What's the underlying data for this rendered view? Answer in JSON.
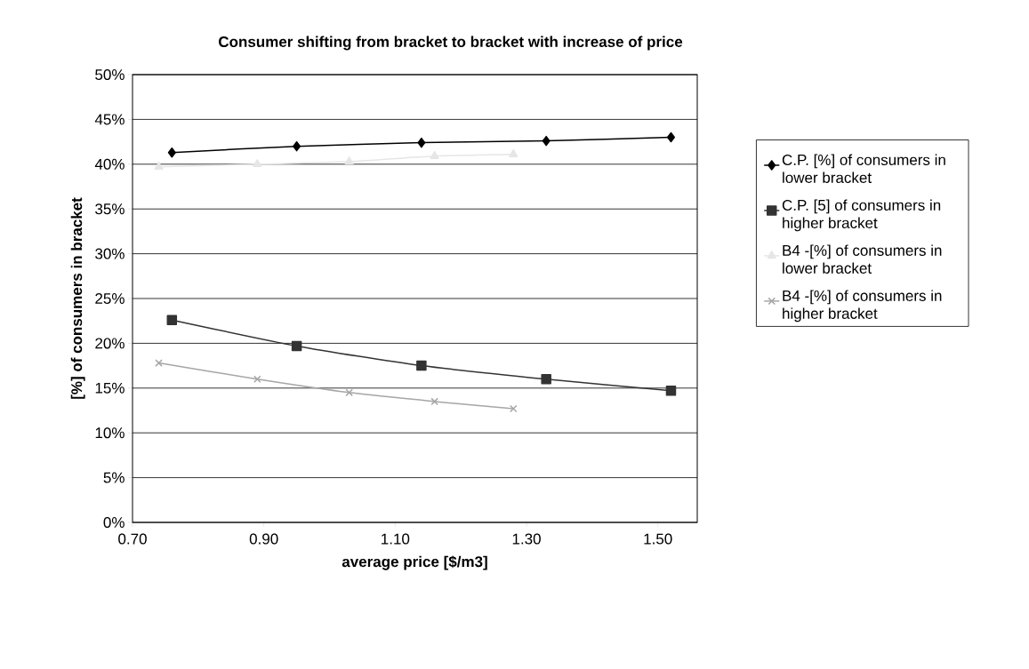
{
  "chart_data": {
    "type": "line",
    "title": "Consumer shifting from bracket to bracket with increase of price",
    "xlabel": "average price [$/m3]",
    "ylabel": "[%] of consumers in bracket",
    "xlim": [
      0.7,
      1.56
    ],
    "xticks": [
      {
        "value": 0.7,
        "label": "0.70"
      },
      {
        "value": 0.9,
        "label": "0.90"
      },
      {
        "value": 1.1,
        "label": "1.10"
      },
      {
        "value": 1.3,
        "label": "1.30"
      },
      {
        "value": 1.5,
        "label": "1.50"
      }
    ],
    "ylim": [
      0,
      50
    ],
    "yticks": [
      {
        "value": 0,
        "label": "0%"
      },
      {
        "value": 5,
        "label": "5%"
      },
      {
        "value": 10,
        "label": "10%"
      },
      {
        "value": 15,
        "label": "15%"
      },
      {
        "value": 20,
        "label": "20%"
      },
      {
        "value": 25,
        "label": "25%"
      },
      {
        "value": 30,
        "label": "30%"
      },
      {
        "value": 35,
        "label": "35%"
      },
      {
        "value": 40,
        "label": "40%"
      },
      {
        "value": 45,
        "label": "45%"
      },
      {
        "value": 50,
        "label": "50%"
      }
    ],
    "grid": "y",
    "legend": "right",
    "series": [
      {
        "name": "C.P. [%] of consumers in lower bracket",
        "color": "#000000",
        "marker": "diamond",
        "x": [
          0.76,
          0.95,
          1.14,
          1.33,
          1.52
        ],
        "values": [
          41.3,
          42.0,
          42.4,
          42.6,
          43.0
        ]
      },
      {
        "name": "C.P. [5] of consumers in higher bracket",
        "color": "#333333",
        "marker": "square",
        "x": [
          0.76,
          0.95,
          1.14,
          1.33,
          1.52
        ],
        "values": [
          22.6,
          19.7,
          17.5,
          16.0,
          14.7
        ]
      },
      {
        "name": "B4 -[%] of consumers in lower bracket",
        "color": "#e6e6e6",
        "marker": "triangle",
        "x": [
          0.74,
          0.89,
          1.03,
          1.16,
          1.28
        ],
        "values": [
          39.7,
          40.0,
          40.3,
          40.9,
          41.1
        ]
      },
      {
        "name": "B4 -[%] of consumers in higher bracket",
        "color": "#a6a6a6",
        "marker": "cross",
        "x": [
          0.74,
          0.89,
          1.03,
          1.16,
          1.28
        ],
        "values": [
          17.8,
          16.0,
          14.5,
          13.5,
          12.7
        ]
      }
    ]
  }
}
